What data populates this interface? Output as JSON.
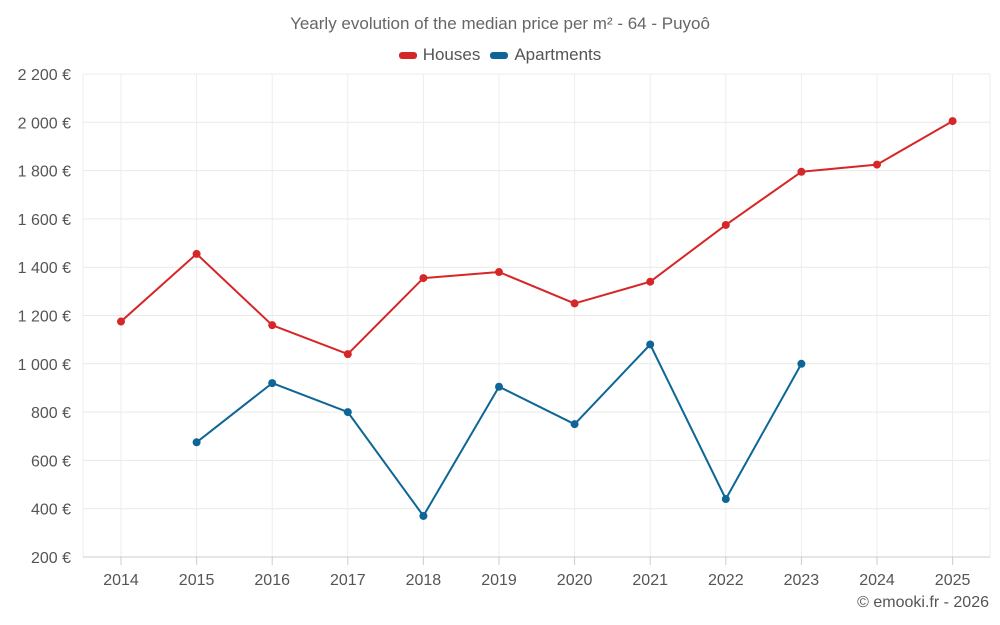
{
  "chart_data": {
    "type": "line",
    "title": "Yearly evolution of the median price per m² - 64 - Puyoô",
    "categories": [
      "2014",
      "2015",
      "2016",
      "2017",
      "2018",
      "2019",
      "2020",
      "2021",
      "2022",
      "2023",
      "2024",
      "2025"
    ],
    "series": [
      {
        "name": "Houses",
        "color": "#d62728",
        "values": [
          1175,
          1455,
          1160,
          1040,
          1355,
          1380,
          1250,
          1340,
          1575,
          1795,
          1825,
          2005
        ]
      },
      {
        "name": "Apartments",
        "color": "#0e6697",
        "values": [
          null,
          675,
          920,
          800,
          370,
          905,
          750,
          1080,
          440,
          1000,
          null,
          null
        ]
      }
    ],
    "ylim": [
      200,
      2200
    ],
    "yticks": [
      200,
      400,
      600,
      800,
      1000,
      1200,
      1400,
      1600,
      1800,
      2000,
      2200
    ],
    "ytick_labels": [
      "200 €",
      "400 €",
      "600 €",
      "800 €",
      "1 000 €",
      "1 200 €",
      "1 400 €",
      "1 600 €",
      "1 800 €",
      "2 000 €",
      "2 200 €"
    ],
    "xlabel": "",
    "ylabel": "",
    "grid": true,
    "legend_position": "top-center"
  },
  "credit": "© emooki.fr - 2026"
}
